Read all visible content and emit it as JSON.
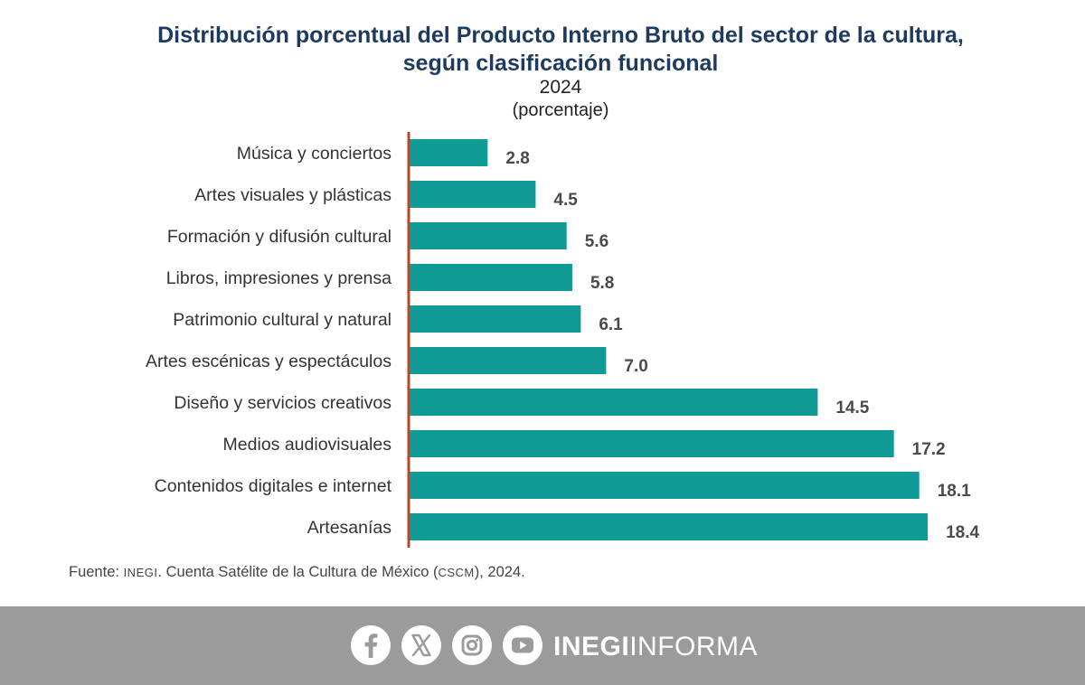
{
  "chart_data": {
    "type": "bar",
    "orientation": "horizontal",
    "title": "Distribución porcentual del Producto Interno Bruto del sector de la cultura, según clasificación funcional",
    "subtitle": "2024",
    "unit_label": "(porcentaje)",
    "categories": [
      "Música y conciertos",
      "Artes visuales y plásticas",
      "Formación y difusión cultural",
      "Libros, impresiones y prensa",
      "Patrimonio cultural y natural",
      "Artes escénicas y espectáculos",
      "Diseño y servicios creativos",
      "Medios audiovisuales",
      "Contenidos digitales e internet",
      "Artesanías"
    ],
    "values": [
      2.8,
      4.5,
      5.6,
      5.8,
      6.1,
      7.0,
      14.5,
      17.2,
      18.1,
      18.4
    ],
    "value_labels": [
      "2.8",
      "4.5",
      "5.6",
      "5.8",
      "6.1",
      "7.0",
      "14.5",
      "17.2",
      "18.1",
      "18.4"
    ],
    "xlim": [
      0,
      20
    ],
    "grid": false,
    "legend": "none",
    "colors": {
      "bar": "#0f9a96",
      "axis": "#b8472a",
      "label": "#333333",
      "value": "#4a4a4a"
    }
  },
  "header": {
    "title_line1": "Distribución porcentual del Producto Interno Bruto del sector de la cultura,",
    "title_line2": "según clasificación funcional",
    "year": "2024",
    "unit": "(porcentaje)"
  },
  "source": {
    "prefix": "Fuente:",
    "org": "INEGI",
    "text_mid": ". Cuenta Satélite de la Cultura de México (",
    "acronym": "CSCM",
    "text_end": "), 2024."
  },
  "footer": {
    "brand_bold": "INEGI",
    "brand_light": "INFORMA",
    "icons": [
      "facebook-icon",
      "x-icon",
      "instagram-icon",
      "youtube-icon"
    ],
    "background": "#9b9b9b"
  }
}
